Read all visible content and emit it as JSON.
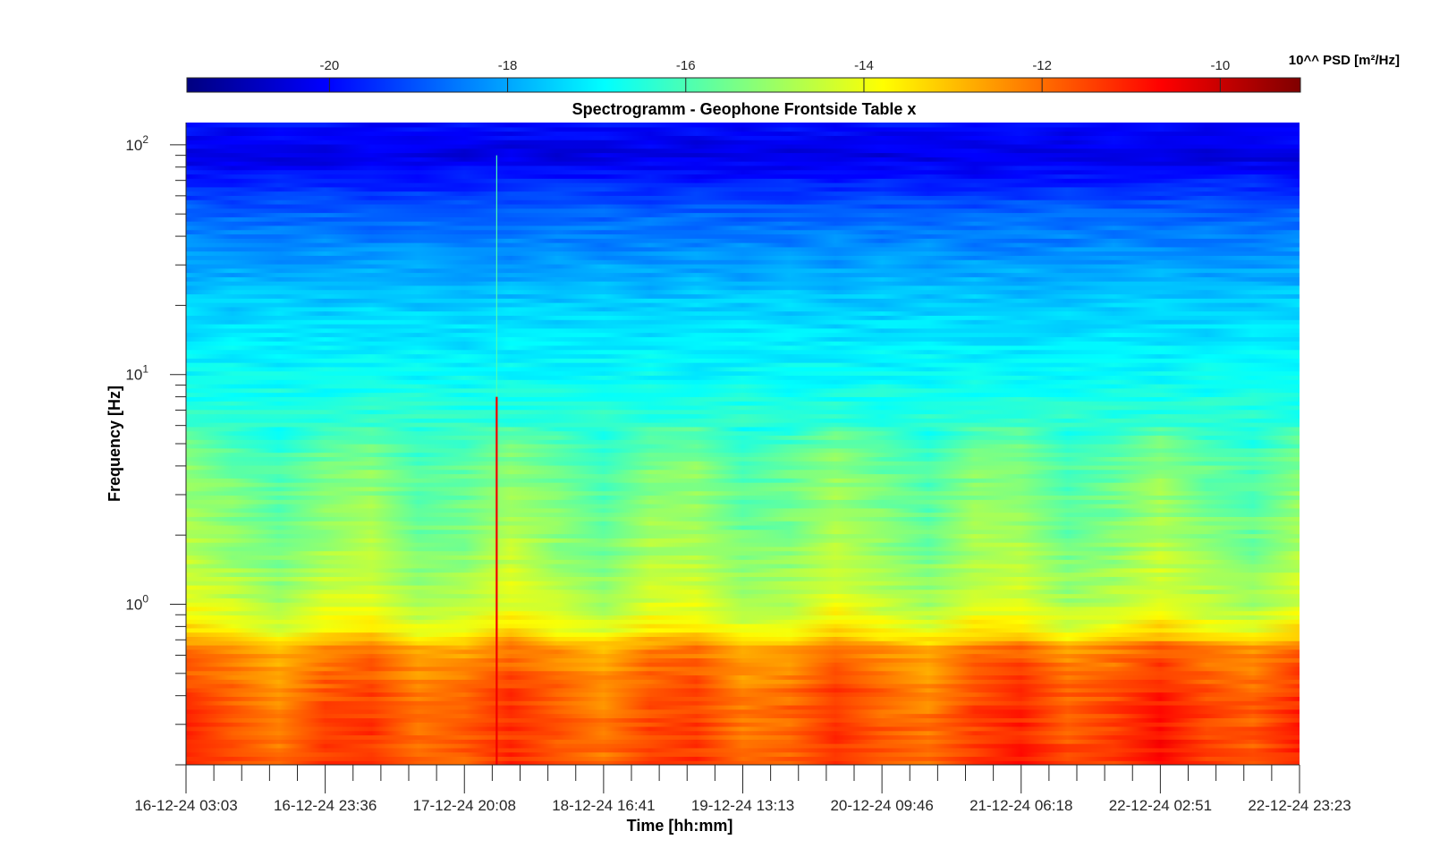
{
  "chart_data": {
    "type": "heatmap",
    "title": "Spectrogramm - Geophone Frontside Table x",
    "xlabel": "Time [hh:mm]",
    "ylabel": "Frequency [Hz]",
    "x_tick_labels": [
      "16-12-24 03:03",
      "16-12-24 23:36",
      "17-12-24 20:08",
      "18-12-24 16:41",
      "19-12-24 13:13",
      "20-12-24 09:46",
      "21-12-24 06:18",
      "22-12-24 02:51",
      "22-12-24 23:23"
    ],
    "y_scale": "log",
    "y_ticks": [
      {
        "base": "10",
        "exp": "0",
        "value": 1
      },
      {
        "base": "10",
        "exp": "1",
        "value": 10
      },
      {
        "base": "10",
        "exp": "2",
        "value": 100
      }
    ],
    "ylim": [
      0.2,
      125
    ],
    "colorbar": {
      "label": "10^^ PSD [m²/Hz]",
      "location": "top",
      "colormap": "jet",
      "ticks": [
        "-20",
        "-18",
        "-16",
        "-14",
        "-12",
        "-10"
      ],
      "tick_values": [
        -20,
        -18,
        -16,
        -14,
        -12,
        -10
      ],
      "limits": [
        -21.6,
        -9.1
      ]
    },
    "frequency_profile": [
      {
        "f": 0.2,
        "log_psd": -11.6
      },
      {
        "f": 0.4,
        "log_psd": -11.8
      },
      {
        "f": 0.65,
        "log_psd": -12.5
      },
      {
        "f": 0.75,
        "log_psd": -13.6
      },
      {
        "f": 1.0,
        "log_psd": -14.5
      },
      {
        "f": 2.0,
        "log_psd": -15.2
      },
      {
        "f": 4.0,
        "log_psd": -15.6
      },
      {
        "f": 6.0,
        "log_psd": -16.3
      },
      {
        "f": 10.0,
        "log_psd": -16.9
      },
      {
        "f": 20.0,
        "log_psd": -17.5
      },
      {
        "f": 50.0,
        "log_psd": -18.8
      },
      {
        "f": 90.0,
        "log_psd": -20.4
      },
      {
        "f": 125.0,
        "log_psd": -19.9
      }
    ],
    "events": [
      {
        "time_fraction": 0.279,
        "log_psd": -10.5,
        "description": "broadband transient"
      }
    ]
  }
}
